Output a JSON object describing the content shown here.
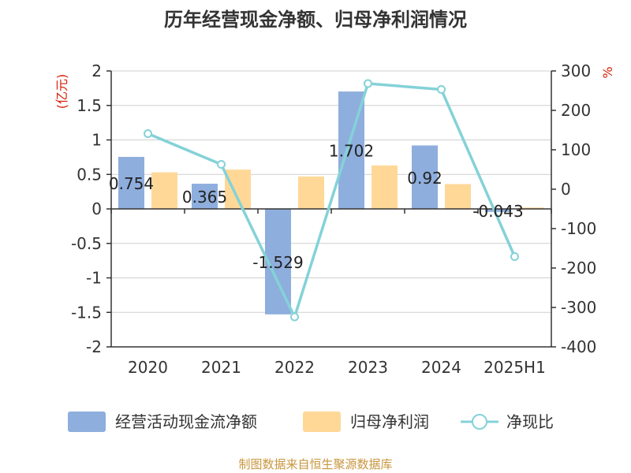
{
  "chart_data": {
    "type": "bar",
    "title": "历年经营现金净额、归母净利润情况",
    "categories": [
      "2020",
      "2021",
      "2022",
      "2023",
      "2024",
      "2025H1"
    ],
    "left_axis": {
      "unit": "(亿元)",
      "ylim": [
        -2,
        2
      ],
      "ticks": [
        "2",
        "1.5",
        "1",
        "0.5",
        "0",
        "-0.5",
        "-1",
        "-1.5",
        "-2"
      ]
    },
    "right_axis": {
      "unit": "%",
      "ylim": [
        -400,
        300
      ],
      "ticks": [
        "300",
        "200",
        "100",
        "0",
        "-100",
        "-200",
        "-300",
        "-400"
      ]
    },
    "series": [
      {
        "name": "经营活动现金流净额",
        "type": "bar",
        "axis": "left",
        "color": "#8eaedd",
        "values": [
          0.754,
          0.365,
          -1.529,
          1.702,
          0.92,
          -0.043
        ],
        "labels": [
          "0.754",
          "0.365",
          "-1.529",
          "1.702",
          "0.92",
          "-0.043"
        ]
      },
      {
        "name": "归母净利润",
        "type": "bar",
        "axis": "left",
        "color": "#ffd898",
        "values": [
          0.53,
          0.57,
          0.47,
          0.63,
          0.36,
          0.02
        ]
      },
      {
        "name": "净现比",
        "type": "line",
        "axis": "right",
        "color": "#84d2d8",
        "values": [
          141,
          63,
          -324,
          268,
          253,
          -171
        ]
      }
    ],
    "grid": true,
    "legend_position": "bottom"
  },
  "source": "制图数据来自恒生聚源数据库"
}
